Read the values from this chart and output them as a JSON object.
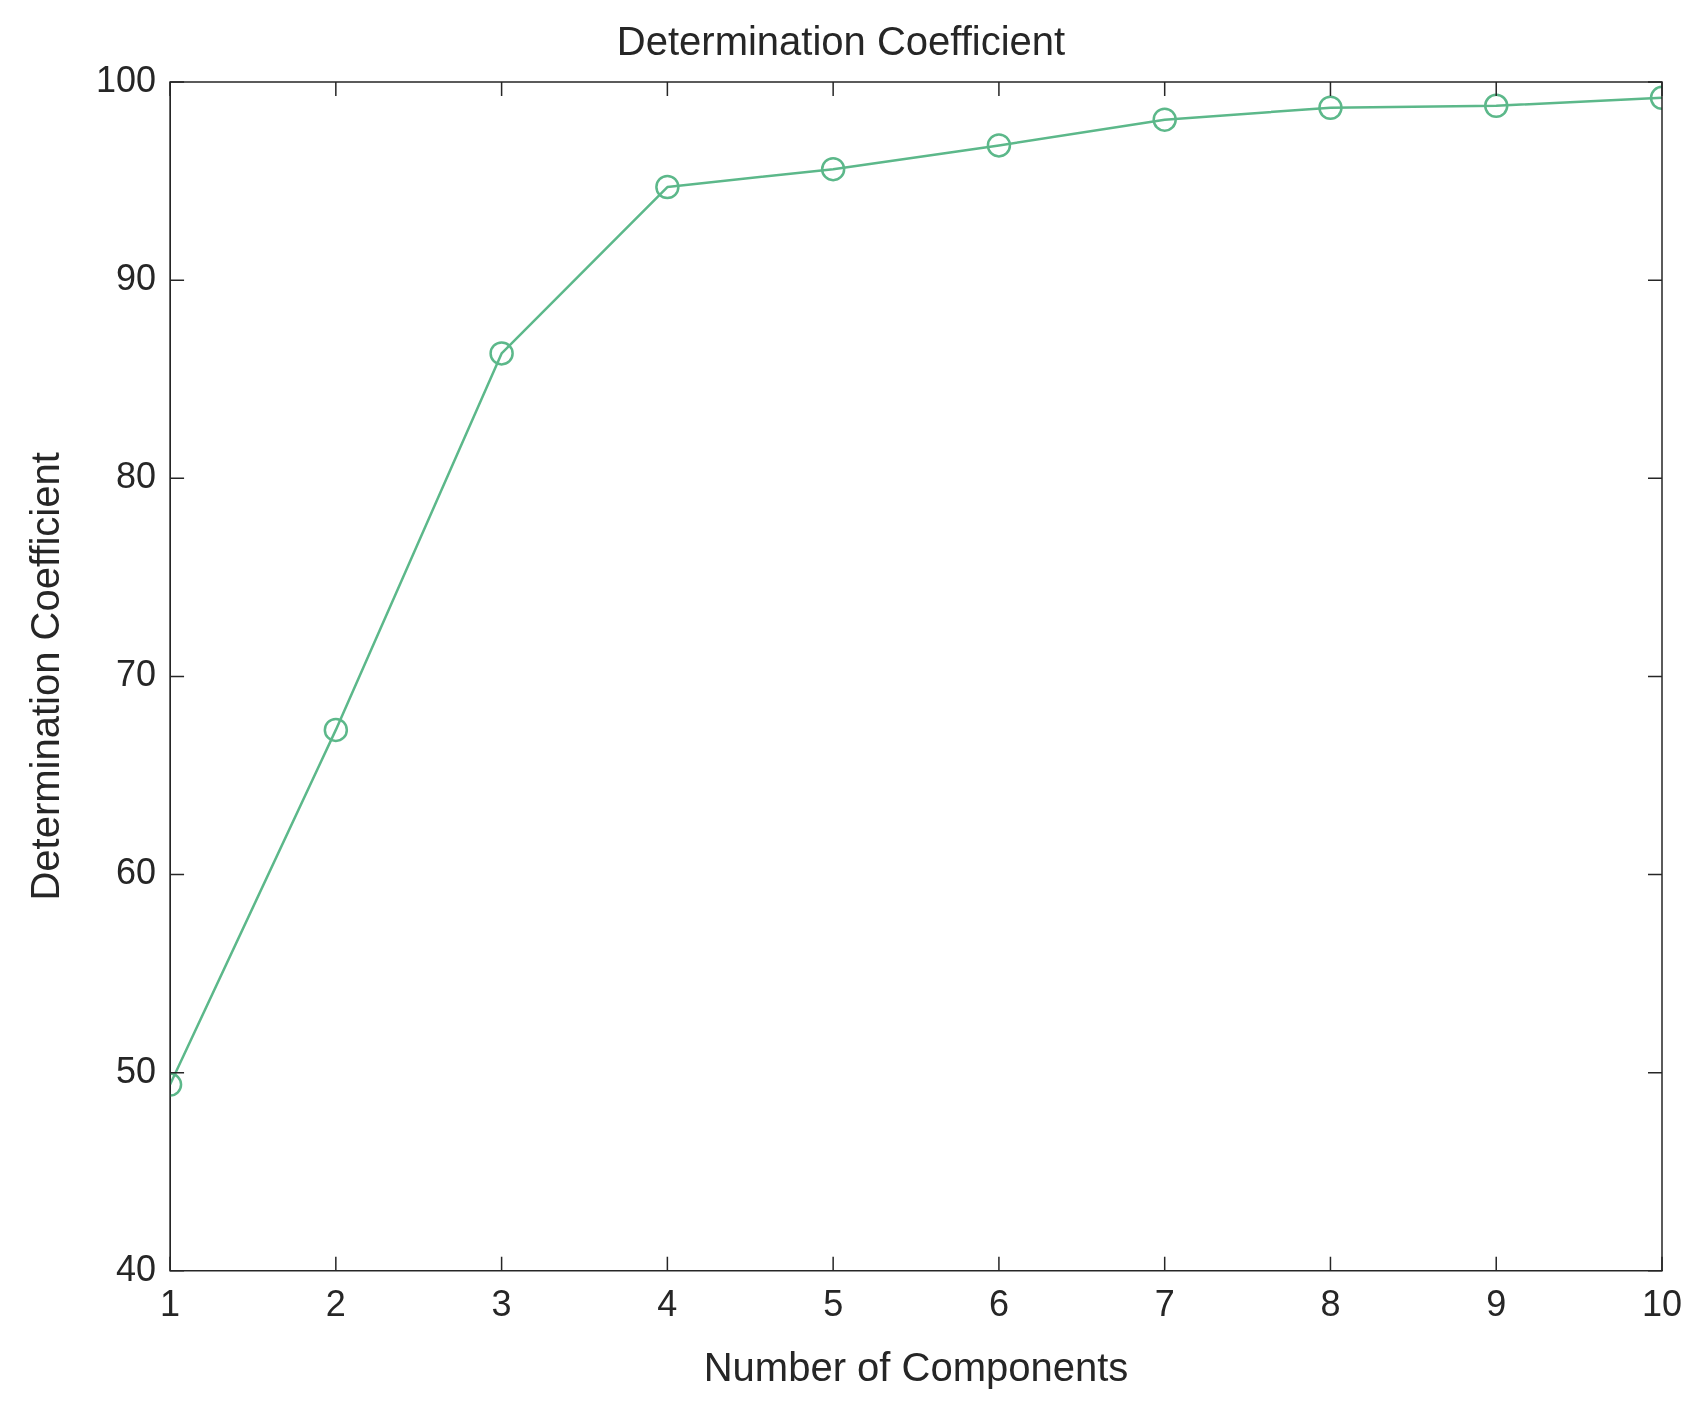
{
  "chart_data": {
    "type": "line",
    "title": "Determination Coefficient",
    "xlabel": "Number of Components",
    "ylabel": "Determination Coefficient",
    "x": [
      1,
      2,
      3,
      4,
      5,
      6,
      7,
      8,
      9,
      10
    ],
    "series": [
      {
        "color": "#5cb88a",
        "values": [
          49.4,
          67.3,
          86.3,
          94.7,
          95.6,
          96.8,
          98.1,
          98.7,
          98.8,
          99.2
        ]
      }
    ],
    "xlim": [
      1,
      10
    ],
    "xticks": [
      1,
      2,
      3,
      4,
      5,
      6,
      7,
      8,
      9,
      10
    ],
    "ylim": [
      40,
      100
    ],
    "yticks": [
      40,
      50,
      60,
      70,
      80,
      90,
      100
    ],
    "grid": false,
    "legend": false,
    "marker": "circle",
    "line_style": "solid"
  }
}
